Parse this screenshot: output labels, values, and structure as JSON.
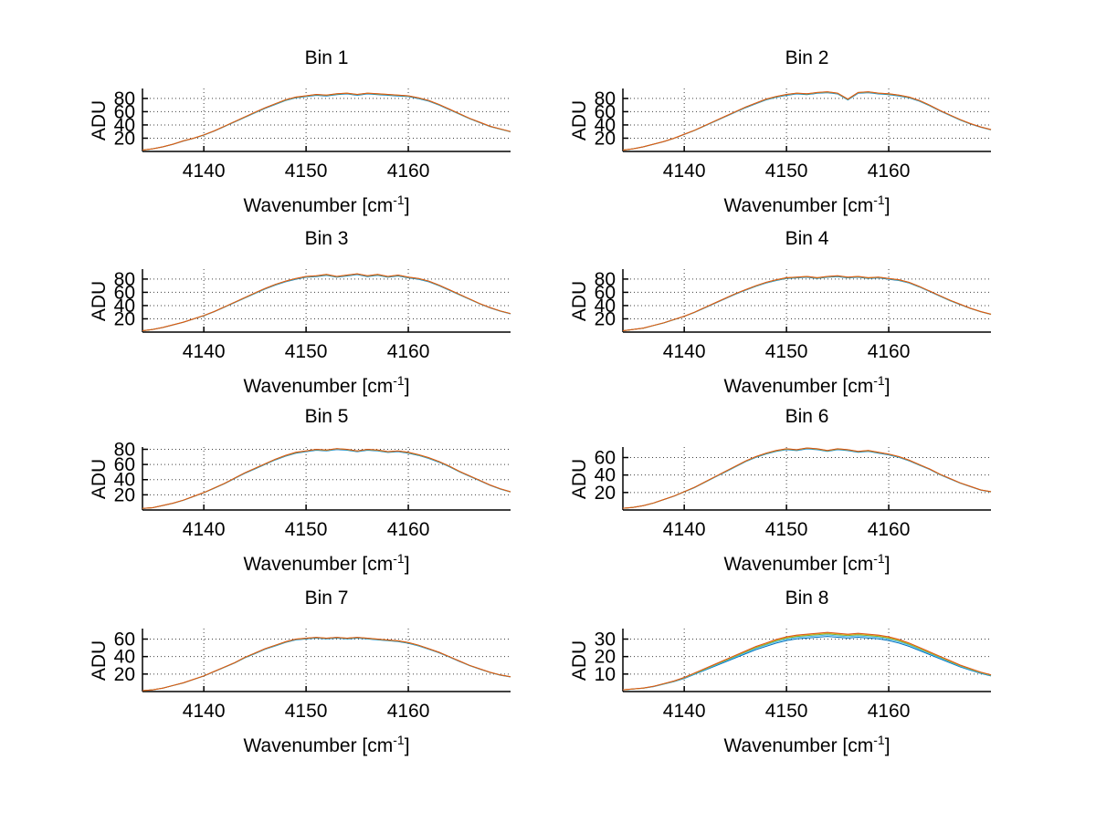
{
  "figure": {
    "background": "#ffffff",
    "text_color": "#000000"
  },
  "chart_data": {
    "type": "line",
    "ylabel": "ADU",
    "xlabel_pre": "Wavenumber [cm",
    "xlabel_sup": "-1",
    "xlabel_post": "]",
    "grid": true,
    "legend": "none",
    "xlim": [
      4134,
      4170
    ],
    "xticks": [
      4140,
      4150,
      4160
    ],
    "series_colors": [
      "#0072BD",
      "#4DBEEE",
      "#77AC30",
      "#EDB120",
      "#D95319"
    ],
    "x_values": [
      4134,
      4135,
      4136,
      4137,
      4138,
      4139,
      4140,
      4141,
      4142,
      4143,
      4144,
      4145,
      4146,
      4147,
      4148,
      4149,
      4150,
      4151,
      4152,
      4153,
      4154,
      4155,
      4156,
      4157,
      4158,
      4159,
      4160,
      4161,
      4162,
      4163,
      4164,
      4165,
      4166,
      4167,
      4168,
      4169,
      4170
    ],
    "subplots": [
      {
        "title": "Bin 1",
        "ylim": [
          0,
          95
        ],
        "yticks": [
          20,
          40,
          60,
          80
        ],
        "series_scales": [
          0.985,
          0.992,
          0.996,
          1.0,
          1.0
        ],
        "adu": [
          2,
          4,
          7,
          11,
          16,
          20,
          25,
          31,
          38,
          45,
          52,
          59,
          66,
          72,
          78,
          82,
          84,
          86,
          85,
          87,
          88,
          86,
          88,
          87,
          86,
          85,
          84,
          81,
          77,
          71,
          64,
          57,
          50,
          44,
          38,
          34,
          30
        ]
      },
      {
        "title": "Bin 2",
        "ylim": [
          0,
          95
        ],
        "yticks": [
          20,
          40,
          60,
          80
        ],
        "series_scales": [
          0.985,
          0.992,
          0.996,
          1.0,
          1.0
        ],
        "adu": [
          2,
          4,
          7,
          11,
          15,
          20,
          26,
          32,
          39,
          46,
          53,
          60,
          67,
          73,
          79,
          83,
          86,
          88,
          87,
          89,
          90,
          88,
          79,
          89,
          90,
          88,
          87,
          85,
          82,
          77,
          70,
          62,
          55,
          48,
          42,
          37,
          33
        ]
      },
      {
        "title": "Bin 3",
        "ylim": [
          0,
          95
        ],
        "yticks": [
          20,
          40,
          60,
          80
        ],
        "series_scales": [
          0.985,
          0.992,
          0.996,
          1.0,
          1.0
        ],
        "adu": [
          2,
          4,
          7,
          11,
          15,
          20,
          25,
          31,
          38,
          45,
          52,
          59,
          66,
          72,
          77,
          81,
          84,
          85,
          87,
          84,
          86,
          88,
          85,
          87,
          84,
          86,
          83,
          81,
          77,
          71,
          64,
          57,
          50,
          43,
          37,
          32,
          28
        ]
      },
      {
        "title": "Bin 4",
        "ylim": [
          0,
          95
        ],
        "yticks": [
          20,
          40,
          60,
          80
        ],
        "series_scales": [
          0.985,
          0.992,
          0.996,
          1.0,
          1.0
        ],
        "adu": [
          2,
          4,
          6,
          10,
          14,
          19,
          24,
          30,
          37,
          44,
          51,
          58,
          64,
          70,
          75,
          79,
          82,
          83,
          84,
          82,
          84,
          85,
          83,
          84,
          82,
          83,
          81,
          79,
          75,
          69,
          62,
          55,
          48,
          42,
          36,
          31,
          27
        ]
      },
      {
        "title": "Bin 5",
        "ylim": [
          0,
          83
        ],
        "yticks": [
          20,
          40,
          60,
          80
        ],
        "series_scales": [
          0.985,
          0.992,
          0.996,
          1.0,
          1.0
        ],
        "adu": [
          2,
          3,
          6,
          9,
          13,
          18,
          23,
          29,
          35,
          42,
          49,
          55,
          61,
          67,
          72,
          76,
          78,
          80,
          79,
          81,
          80,
          78,
          80,
          79,
          77,
          78,
          76,
          73,
          69,
          64,
          58,
          51,
          45,
          39,
          33,
          28,
          24
        ]
      },
      {
        "title": "Bin 6",
        "ylim": [
          0,
          72
        ],
        "yticks": [
          20,
          40,
          60
        ],
        "series_scales": [
          0.985,
          0.992,
          0.996,
          1.0,
          1.0
        ],
        "adu": [
          2,
          3,
          5,
          8,
          12,
          16,
          21,
          26,
          32,
          38,
          44,
          50,
          56,
          61,
          65,
          68,
          70,
          69,
          71,
          70,
          68,
          70,
          69,
          67,
          68,
          66,
          64,
          61,
          57,
          52,
          47,
          41,
          36,
          31,
          27,
          23,
          21
        ]
      },
      {
        "title": "Bin 7",
        "ylim": [
          0,
          72
        ],
        "yticks": [
          20,
          40,
          60
        ],
        "series_scales": [
          0.985,
          0.992,
          0.996,
          1.0,
          1.0
        ],
        "adu": [
          1,
          2,
          4,
          7,
          10,
          14,
          18,
          23,
          28,
          33,
          39,
          44,
          49,
          53,
          57,
          60,
          61,
          62,
          61,
          62,
          61,
          62,
          61,
          60,
          59,
          58,
          56,
          53,
          49,
          45,
          40,
          35,
          30,
          26,
          22,
          19,
          17
        ]
      },
      {
        "title": "Bin 8",
        "ylim": [
          0,
          36
        ],
        "yticks": [
          10,
          20,
          30
        ],
        "series_scales": [
          0.94,
          0.965,
          0.985,
          1.0,
          1.01
        ],
        "adu": [
          1,
          1.5,
          2,
          3,
          4.5,
          6,
          8,
          10.5,
          13,
          15.5,
          18,
          20.5,
          23,
          25.5,
          27.5,
          29.5,
          31,
          32,
          32.5,
          33,
          33.5,
          33,
          32.5,
          33,
          32.5,
          32,
          31,
          29.5,
          27.5,
          25,
          22.5,
          20,
          17.5,
          15,
          13,
          11,
          9.5
        ]
      }
    ]
  }
}
